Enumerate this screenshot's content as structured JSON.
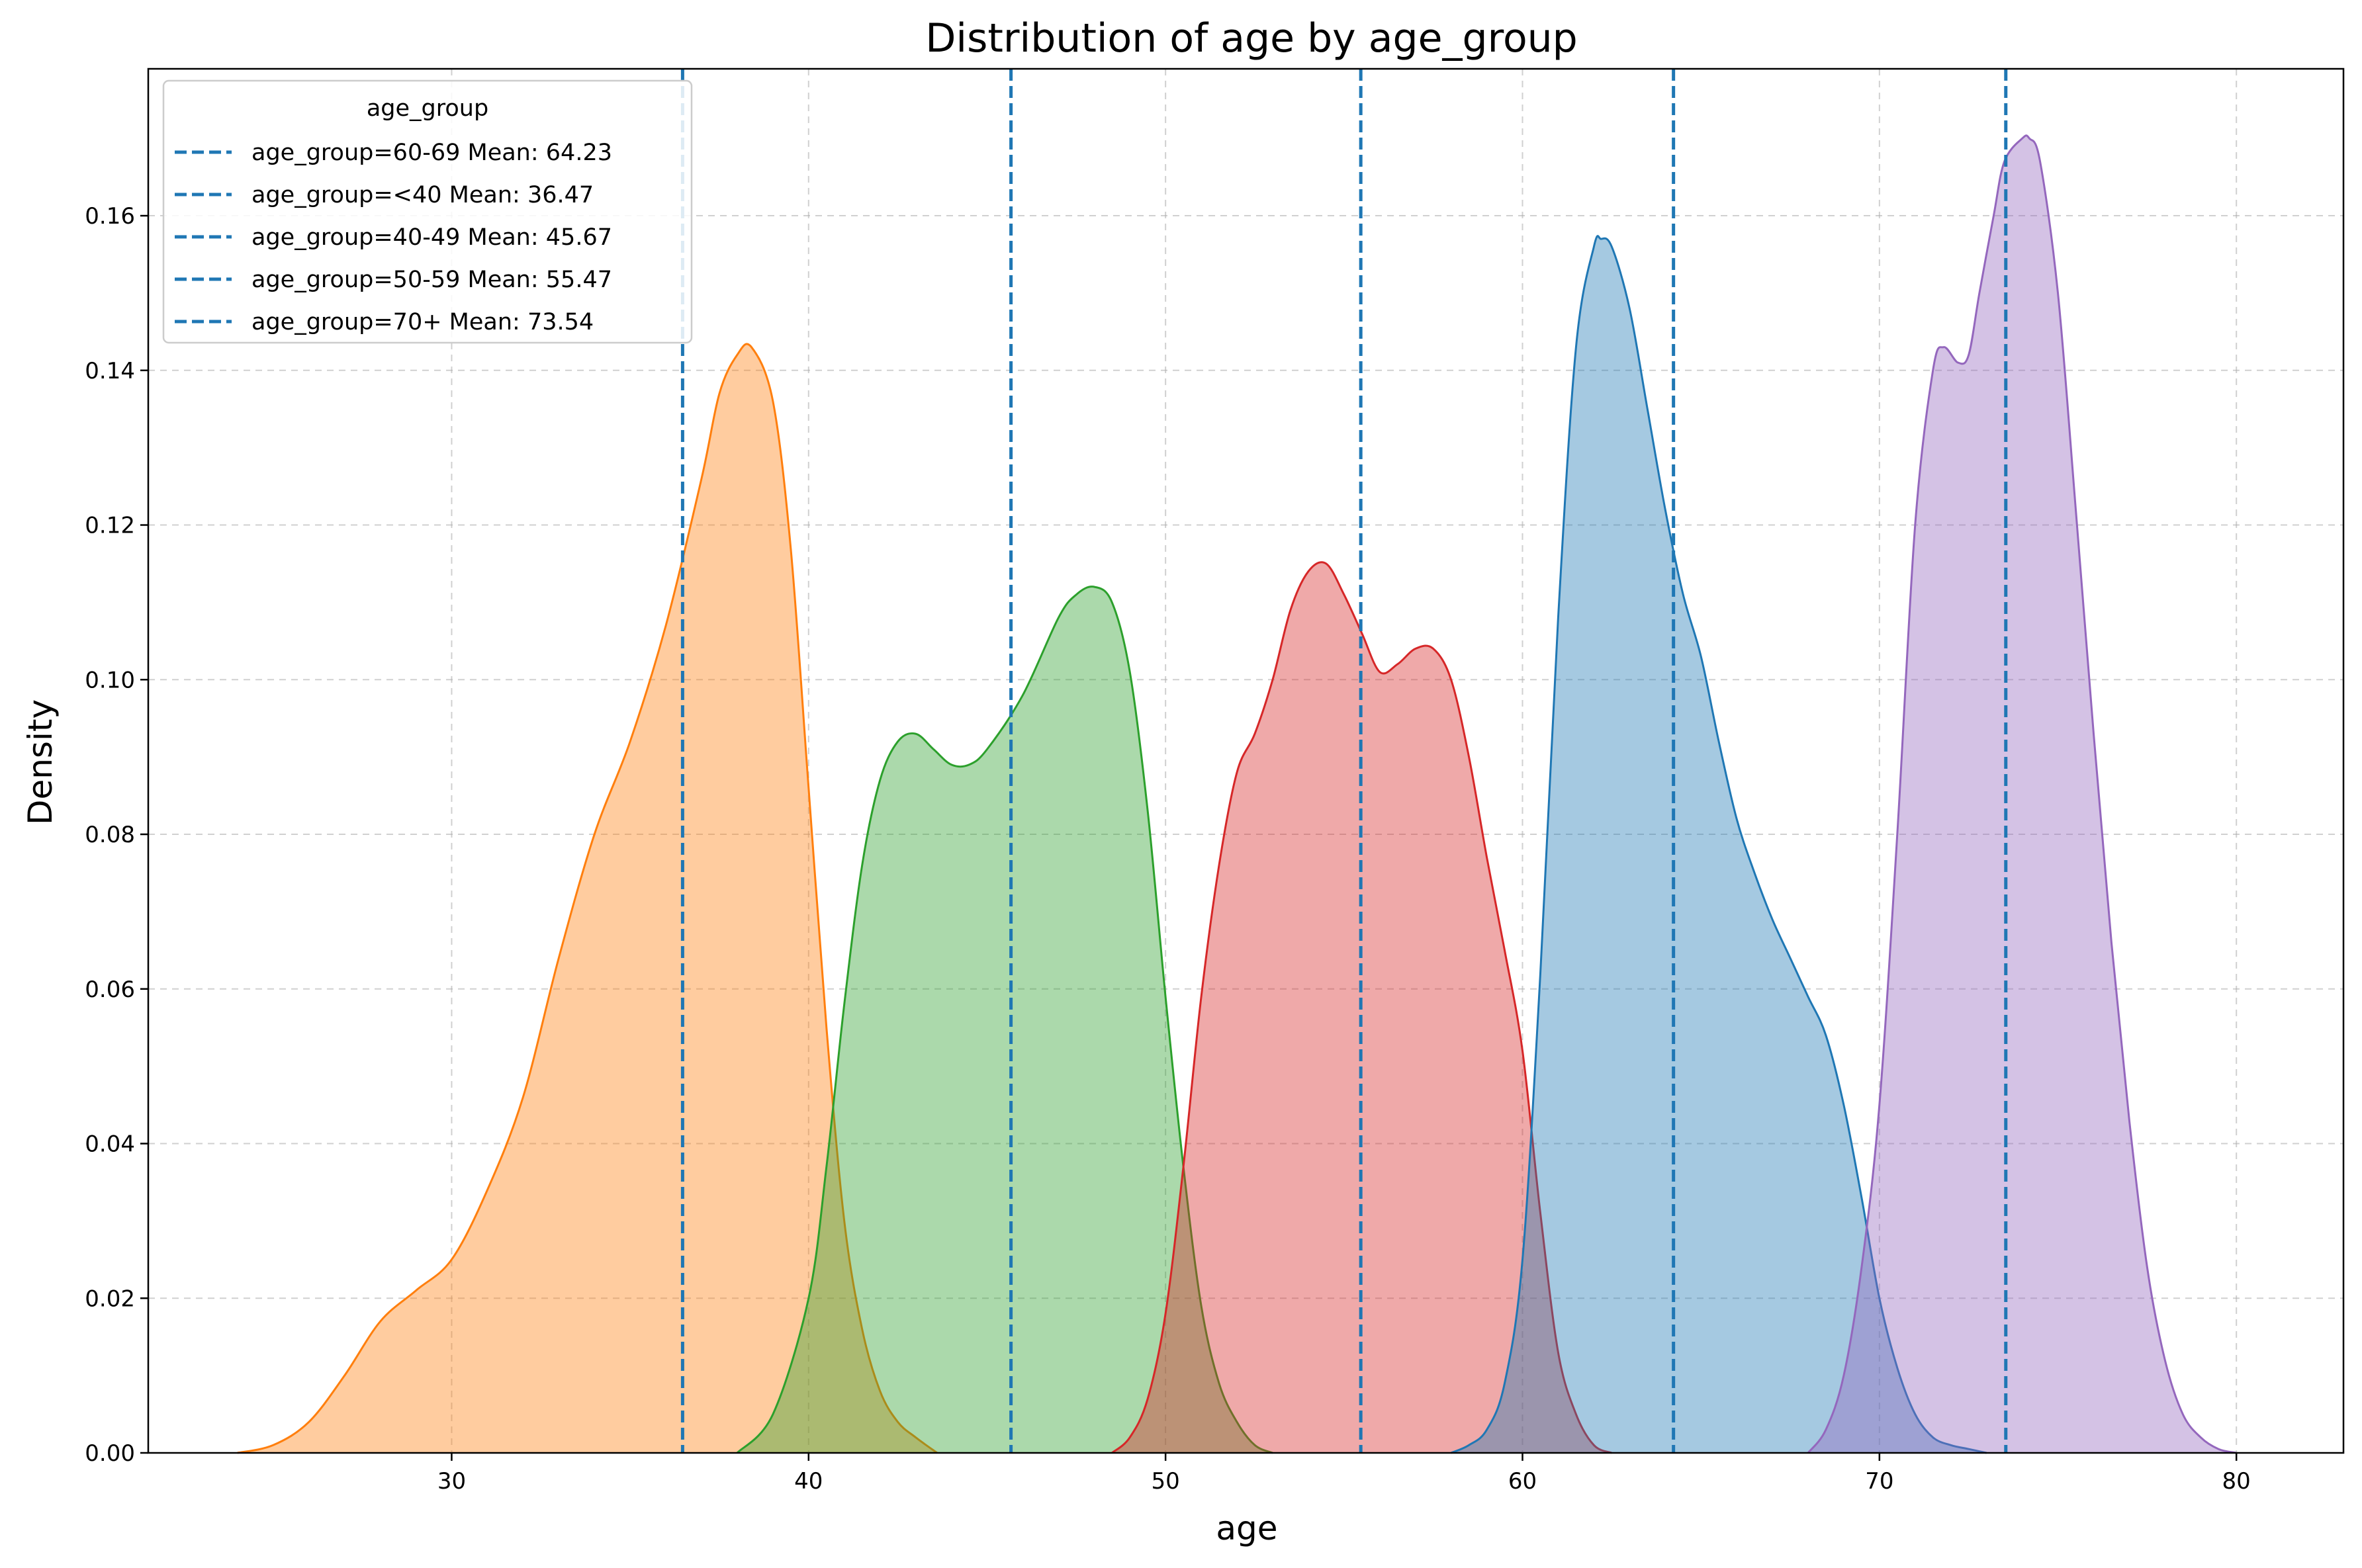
{
  "chart_data": {
    "type": "area",
    "title": "Distribution of age by age_group",
    "xlabel": "age",
    "ylabel": "Density",
    "xlim": [
      21.5,
      83
    ],
    "ylim": [
      0,
      0.179
    ],
    "x_ticks": [
      30,
      40,
      50,
      60,
      70,
      80
    ],
    "y_ticks": [
      0.0,
      0.02,
      0.04,
      0.06,
      0.08,
      0.1,
      0.12,
      0.14,
      0.16
    ],
    "y_tick_labels": [
      "0.00",
      "0.02",
      "0.04",
      "0.06",
      "0.08",
      "0.10",
      "0.12",
      "0.14",
      "0.16"
    ],
    "grid": true,
    "legend_title": "age_group",
    "legend_position": "top-left",
    "mean_line_color": "#1f77b4",
    "legend_entries": [
      "age_group=60-69 Mean: 64.23",
      "age_group=<40 Mean: 36.47",
      "age_group=40-49 Mean: 45.67",
      "age_group=50-59 Mean: 55.47",
      "age_group=70+ Mean: 73.54"
    ],
    "means": [
      64.23,
      36.47,
      45.67,
      55.47,
      73.54
    ],
    "series": [
      {
        "group": "<40",
        "color": "#ff7f0e",
        "x": [
          24.0,
          25.0,
          26.0,
          27.0,
          28.0,
          29.0,
          30.0,
          31.0,
          32.0,
          33.0,
          34.0,
          35.0,
          36.0,
          37.0,
          37.5,
          38.0,
          38.4,
          39.0,
          39.5,
          40.0,
          40.5,
          41.0,
          41.5,
          42.0,
          42.5,
          43.0,
          43.6
        ],
        "y": [
          0.0,
          0.001,
          0.004,
          0.01,
          0.017,
          0.021,
          0.025,
          0.034,
          0.046,
          0.064,
          0.08,
          0.092,
          0.107,
          0.126,
          0.137,
          0.142,
          0.143,
          0.136,
          0.117,
          0.086,
          0.055,
          0.03,
          0.016,
          0.008,
          0.004,
          0.002,
          0.0
        ]
      },
      {
        "group": "40-49",
        "color": "#2ca02c",
        "x": [
          38.0,
          39.0,
          40.0,
          40.5,
          41.0,
          41.5,
          42.0,
          42.5,
          43.0,
          43.5,
          44.0,
          44.5,
          45.0,
          46.0,
          47.0,
          47.5,
          48.0,
          48.5,
          49.0,
          49.5,
          50.0,
          50.5,
          51.0,
          51.5,
          52.0,
          52.5,
          53.0
        ],
        "y": [
          0.0,
          0.005,
          0.02,
          0.037,
          0.058,
          0.076,
          0.087,
          0.092,
          0.093,
          0.091,
          0.089,
          0.089,
          0.091,
          0.098,
          0.108,
          0.111,
          0.112,
          0.11,
          0.101,
          0.083,
          0.059,
          0.037,
          0.019,
          0.009,
          0.004,
          0.001,
          0.0
        ]
      },
      {
        "group": "50-59",
        "color": "#d62728",
        "x": [
          48.5,
          49.0,
          49.5,
          50.0,
          50.5,
          51.0,
          51.5,
          52.0,
          52.5,
          53.0,
          53.5,
          54.0,
          54.5,
          55.0,
          55.5,
          56.0,
          56.5,
          57.0,
          57.5,
          58.0,
          58.5,
          59.0,
          59.5,
          60.0,
          60.5,
          61.0,
          61.5,
          62.0,
          62.5
        ],
        "y": [
          0.0,
          0.002,
          0.007,
          0.018,
          0.037,
          0.059,
          0.076,
          0.088,
          0.093,
          0.1,
          0.109,
          0.114,
          0.115,
          0.111,
          0.106,
          0.101,
          0.102,
          0.104,
          0.104,
          0.1,
          0.09,
          0.077,
          0.065,
          0.052,
          0.031,
          0.013,
          0.005,
          0.001,
          0.0
        ]
      },
      {
        "group": "60-69",
        "color": "#1f77b4",
        "x": [
          58.0,
          58.5,
          59.0,
          59.5,
          60.0,
          60.5,
          61.0,
          61.5,
          62.0,
          62.2,
          62.5,
          63.0,
          63.5,
          64.0,
          64.5,
          65.0,
          65.5,
          66.0,
          66.5,
          67.0,
          67.5,
          68.0,
          68.5,
          69.0,
          69.5,
          70.0,
          70.5,
          71.0,
          71.5,
          72.0,
          72.5,
          73.0
        ],
        "y": [
          0.0,
          0.001,
          0.003,
          0.009,
          0.025,
          0.062,
          0.108,
          0.143,
          0.156,
          0.157,
          0.156,
          0.148,
          0.135,
          0.122,
          0.111,
          0.103,
          0.092,
          0.082,
          0.075,
          0.069,
          0.064,
          0.059,
          0.054,
          0.045,
          0.033,
          0.02,
          0.011,
          0.005,
          0.002,
          0.001,
          0.0005,
          0.0
        ]
      },
      {
        "group": "70+",
        "color": "#9467bd",
        "x": [
          68.0,
          68.5,
          69.0,
          69.5,
          70.0,
          70.5,
          71.0,
          71.5,
          71.8,
          72.2,
          72.5,
          72.8,
          73.2,
          73.5,
          74.0,
          74.2,
          74.5,
          75.0,
          75.5,
          76.0,
          76.5,
          77.0,
          77.5,
          78.0,
          78.5,
          79.0,
          79.5,
          80.0
        ],
        "y": [
          0.0,
          0.003,
          0.01,
          0.024,
          0.045,
          0.08,
          0.12,
          0.14,
          0.143,
          0.141,
          0.142,
          0.15,
          0.16,
          0.167,
          0.17,
          0.17,
          0.167,
          0.15,
          0.122,
          0.093,
          0.066,
          0.043,
          0.024,
          0.012,
          0.005,
          0.002,
          0.0005,
          0.0
        ]
      }
    ]
  }
}
